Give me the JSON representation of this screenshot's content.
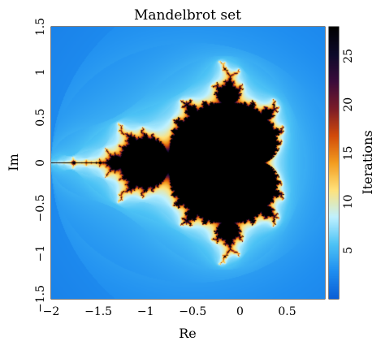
{
  "chart_data": {
    "type": "heatmap",
    "title": "Mandelbrot set",
    "xlabel": "Re",
    "ylabel": "Im",
    "xlim": [
      -2,
      0.9
    ],
    "ylim": [
      -1.5,
      1.5
    ],
    "x_ticks": [
      "−2",
      "−1.5",
      "−1",
      "−0.5",
      "0",
      "0.5"
    ],
    "x_tick_values": [
      -2,
      -1.5,
      -1,
      -0.5,
      0,
      0.5
    ],
    "y_ticks": [
      "−1.5",
      "−1",
      "−0.5",
      "0",
      "0.5",
      "1",
      "1.5"
    ],
    "y_tick_values": [
      -1.5,
      -1,
      -0.5,
      0,
      0.5,
      1,
      1.5
    ],
    "max_iterations": 28,
    "colorbar": {
      "label": "Iterations",
      "range": [
        0,
        28
      ],
      "ticks": [
        "5",
        "10",
        "15",
        "20",
        "25"
      ],
      "tick_values": [
        5,
        10,
        15,
        20,
        25
      ]
    },
    "colormap_stops": [
      "#0a5fd6",
      "#1f8ef0",
      "#4dc3f5",
      "#bff1ff",
      "#ffe27a",
      "#f39c1f",
      "#d24a0a",
      "#7a1c28",
      "#3a0b3b",
      "#0d0a2a",
      "#000000"
    ],
    "grid": false
  }
}
